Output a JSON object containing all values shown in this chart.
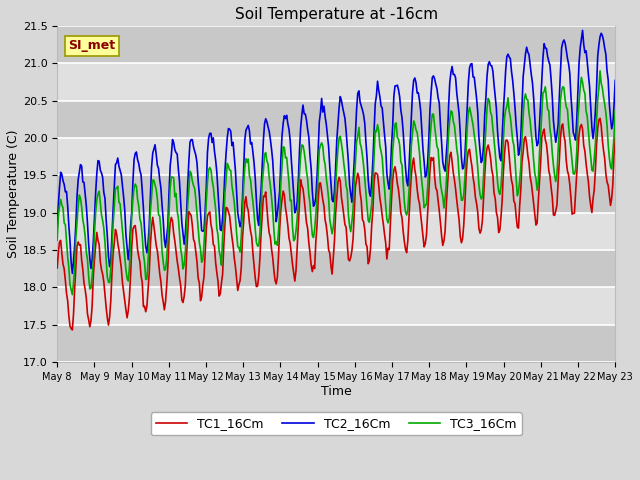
{
  "title": "Soil Temperature at -16cm",
  "xlabel": "Time",
  "ylabel": "Soil Temperature (C)",
  "ylim": [
    17.0,
    21.5
  ],
  "yticks": [
    17.0,
    17.5,
    18.0,
    18.5,
    19.0,
    19.5,
    20.0,
    20.5,
    21.0,
    21.5
  ],
  "xlim": [
    8,
    23
  ],
  "xtick_labels": [
    "May 8",
    "May 9",
    "May 10",
    "May 11",
    "May 12",
    "May 13",
    "May 14",
    "May 15",
    "May 16",
    "May 17",
    "May 18",
    "May 19",
    "May 20",
    "May 21",
    "May 22",
    "May 23"
  ],
  "line_colors": {
    "TC1_16Cm": "#cc0000",
    "TC2_16Cm": "#0000dd",
    "TC3_16Cm": "#00aa00"
  },
  "line_width": 1.2,
  "annotation_text": "SI_met",
  "bg_color": "#d8d8d8",
  "plot_bg_color": "#d8d8d8",
  "grid_color": "#ffffff",
  "n_points": 480,
  "figsize": [
    6.4,
    4.8
  ],
  "dpi": 100
}
